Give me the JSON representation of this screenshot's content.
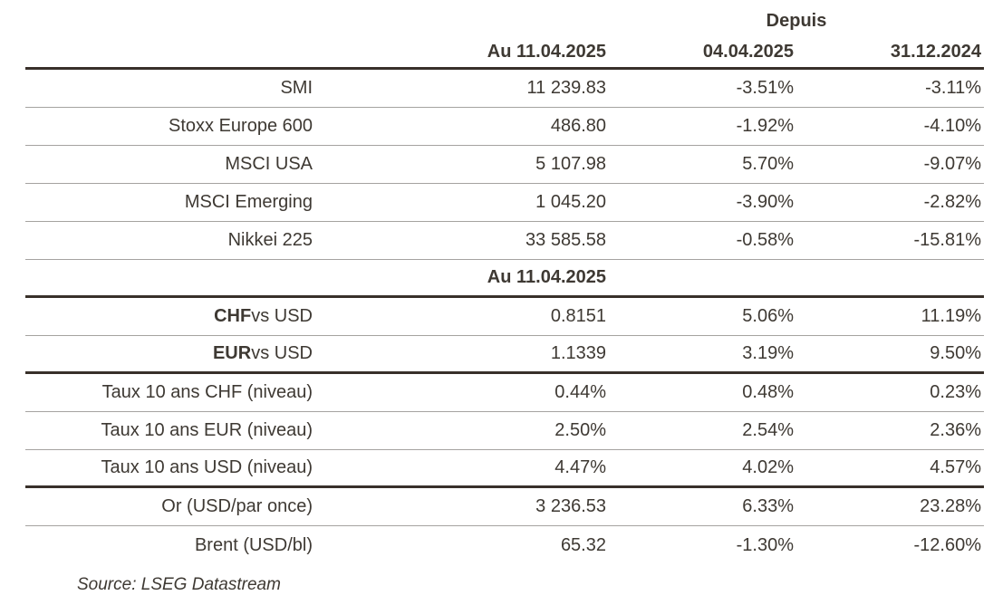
{
  "chart_data": {
    "type": "table",
    "group_header": "Depuis",
    "columns": [
      "",
      "Au 11.04.2025",
      "04.04.2025",
      "31.12.2024"
    ],
    "mid_header": "Au 11.04.2025",
    "rows": [
      {
        "label": "SMI",
        "current": "11 239.83",
        "since_week": "-3.51%",
        "since_ytd": "-3.11%"
      },
      {
        "label": "Stoxx Europe 600",
        "current": "486.80",
        "since_week": "-1.92%",
        "since_ytd": "-4.10%"
      },
      {
        "label": "MSCI USA",
        "current": "5 107.98",
        "since_week": "5.70%",
        "since_ytd": "-9.07%"
      },
      {
        "label": "MSCI Emerging",
        "current": "1 045.20",
        "since_week": "-3.90%",
        "since_ytd": "-2.82%"
      },
      {
        "label": "Nikkei 225",
        "current": "33 585.58",
        "since_week": "-0.58%",
        "since_ytd": "-15.81%"
      },
      {
        "label_bold": "CHF",
        "label": " vs USD",
        "current": "0.8151",
        "since_week": "5.06%",
        "since_ytd": "11.19%"
      },
      {
        "label_bold": "EUR",
        "label": " vs USD",
        "current": "1.1339",
        "since_week": "3.19%",
        "since_ytd": "9.50%"
      },
      {
        "label": "Taux 10 ans CHF (niveau)",
        "current": "0.44%",
        "since_week": "0.48%",
        "since_ytd": "0.23%"
      },
      {
        "label": "Taux 10 ans EUR (niveau)",
        "current": "2.50%",
        "since_week": "2.54%",
        "since_ytd": "2.36%"
      },
      {
        "label": "Taux 10 ans USD (niveau)",
        "current": "4.47%",
        "since_week": "4.02%",
        "since_ytd": "4.57%"
      },
      {
        "label": "Or (USD/par once)",
        "current": "3 236.53",
        "since_week": "6.33%",
        "since_ytd": "23.28%"
      },
      {
        "label": "Brent (USD/bl)",
        "current": "65.32",
        "since_week": "-1.30%",
        "since_ytd": "-12.60%"
      }
    ],
    "source": "Source: LSEG Datastream"
  },
  "colors": {
    "text": "#3E3933",
    "thick_rule": "#38302A",
    "thin_rule": "#A5A3A0",
    "background": "#FFFFFF"
  }
}
